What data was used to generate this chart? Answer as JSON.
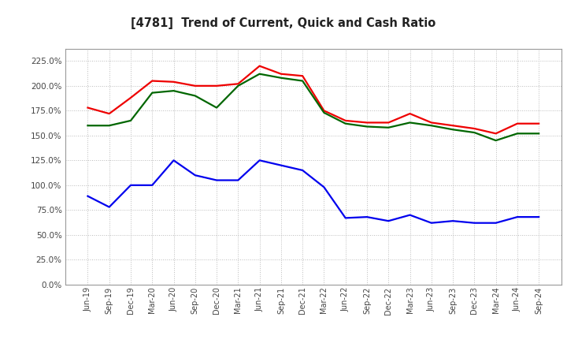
{
  "title": "[4781]  Trend of Current, Quick and Cash Ratio",
  "labels": [
    "Jun-19",
    "Sep-19",
    "Dec-19",
    "Mar-20",
    "Jun-20",
    "Sep-20",
    "Dec-20",
    "Mar-21",
    "Jun-21",
    "Sep-21",
    "Dec-21",
    "Mar-22",
    "Jun-22",
    "Sep-22",
    "Dec-22",
    "Mar-23",
    "Jun-23",
    "Sep-23",
    "Dec-23",
    "Mar-24",
    "Jun-24",
    "Sep-24"
  ],
  "current_ratio": [
    178,
    172,
    188,
    205,
    204,
    200,
    200,
    202,
    220,
    212,
    210,
    175,
    165,
    163,
    163,
    172,
    163,
    160,
    157,
    152,
    162,
    162
  ],
  "quick_ratio": [
    160,
    160,
    165,
    193,
    195,
    190,
    178,
    200,
    212,
    208,
    205,
    173,
    162,
    159,
    158,
    163,
    160,
    156,
    153,
    145,
    152,
    152
  ],
  "cash_ratio": [
    89,
    78,
    100,
    100,
    125,
    110,
    105,
    105,
    125,
    120,
    115,
    98,
    67,
    68,
    64,
    70,
    62,
    64,
    62,
    62,
    68,
    68
  ],
  "ylim": [
    0,
    237.5
  ],
  "yticks": [
    0,
    25,
    50,
    75,
    100,
    125,
    150,
    175,
    200,
    225
  ],
  "current_color": "#EE0000",
  "quick_color": "#006600",
  "cash_color": "#0000EE",
  "bg_color": "#FFFFFF",
  "plot_bg_color": "#FFFFFF",
  "grid_color": "#BBBBBB",
  "line_width": 1.6
}
